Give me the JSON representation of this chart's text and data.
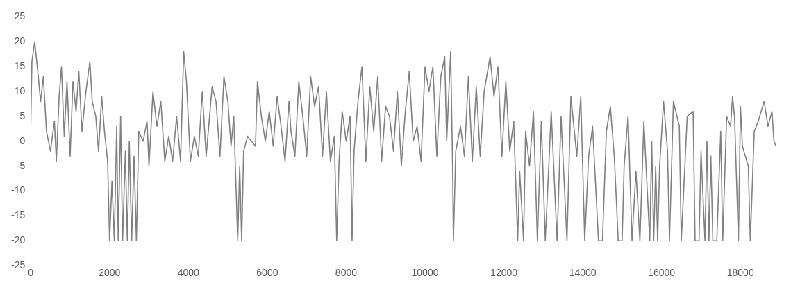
{
  "chart_data": {
    "type": "line",
    "xlim": [
      0,
      19000
    ],
    "xticks": [
      0,
      2000,
      4000,
      6000,
      8000,
      10000,
      12000,
      14000,
      16000,
      18000
    ],
    "ylim": [
      -25,
      25
    ],
    "yticks": [
      -25,
      -20,
      -15,
      -10,
      -5,
      0,
      5,
      10,
      15,
      20,
      25
    ],
    "grid": "y",
    "legend": false,
    "marker": "none",
    "line_style": "solid",
    "series": [
      {
        "color": "#808080",
        "x": [
          0,
          30,
          100,
          180,
          250,
          320,
          400,
          500,
          600,
          650,
          720,
          780,
          850,
          920,
          1000,
          1070,
          1150,
          1220,
          1300,
          1400,
          1500,
          1560,
          1650,
          1720,
          1800,
          1870,
          1950,
          2000,
          2060,
          2120,
          2180,
          2220,
          2280,
          2330,
          2400,
          2450,
          2500,
          2560,
          2620,
          2680,
          2740,
          2850,
          2950,
          3000,
          3100,
          3200,
          3300,
          3400,
          3500,
          3600,
          3700,
          3800,
          3880,
          3950,
          4050,
          4150,
          4250,
          4350,
          4450,
          4600,
          4700,
          4800,
          4900,
          5000,
          5080,
          5150,
          5250,
          5300,
          5350,
          5400,
          5500,
          5700,
          5750,
          5850,
          5950,
          6050,
          6150,
          6250,
          6350,
          6450,
          6550,
          6600,
          6700,
          6800,
          6900,
          7000,
          7100,
          7200,
          7300,
          7400,
          7500,
          7600,
          7700,
          7760,
          7820,
          7900,
          8000,
          8100,
          8150,
          8200,
          8300,
          8400,
          8500,
          8600,
          8700,
          8800,
          8900,
          9000,
          9100,
          9200,
          9300,
          9400,
          9500,
          9600,
          9700,
          9800,
          9900,
          10000,
          10100,
          10200,
          10300,
          10400,
          10500,
          10550,
          10650,
          10700,
          10720,
          10780,
          10900,
          11000,
          11100,
          11200,
          11300,
          11400,
          11500,
          11650,
          11750,
          11850,
          11950,
          12050,
          12150,
          12250,
          12350,
          12400,
          12500,
          12550,
          12650,
          12750,
          12850,
          12950,
          13050,
          13150,
          13200,
          13350,
          13450,
          13600,
          13700,
          13850,
          13950,
          14050,
          14150,
          14250,
          14400,
          14500,
          14600,
          14700,
          14800,
          14900,
          15000,
          15050,
          15150,
          15250,
          15350,
          15450,
          15550,
          15700,
          15750,
          15800,
          15850,
          15900,
          15950,
          16050,
          16150,
          16200,
          16300,
          16450,
          16500,
          16650,
          16800,
          16850,
          16950,
          17000,
          17100,
          17150,
          17200,
          17250,
          17300,
          17400,
          17500,
          17550,
          17650,
          17750,
          17800,
          17850,
          17950,
          18000,
          18050,
          18200,
          18250,
          18350,
          18450,
          18600,
          18700,
          18800,
          18850,
          18900
        ],
        "values": [
          3,
          16,
          20,
          14,
          8,
          13,
          2,
          -2,
          4,
          -4,
          9,
          15,
          1,
          12,
          -3,
          12,
          6,
          14,
          2,
          10,
          16,
          8,
          5,
          -2,
          9,
          2,
          -4,
          -20,
          -8,
          -20,
          3,
          -20,
          5,
          -20,
          -2,
          -20,
          0,
          -20,
          -3,
          -20,
          2,
          0,
          4,
          -5,
          10,
          3,
          8,
          -4,
          1,
          -4,
          5,
          -4,
          18,
          12,
          -4,
          1,
          -3,
          10,
          -3,
          11,
          8,
          -3,
          13,
          8,
          -1,
          5,
          -20,
          -5,
          -20,
          -2,
          1,
          -1,
          12,
          5,
          0,
          6,
          -1,
          9,
          3,
          -4,
          8,
          2,
          -3,
          12,
          5,
          -3,
          13,
          7,
          11,
          -3,
          10,
          -4,
          1,
          -20,
          -4,
          6,
          0,
          5,
          -20,
          -2,
          8,
          15,
          -4,
          11,
          2,
          13,
          -4,
          7,
          5,
          -2,
          10,
          -5,
          6,
          14,
          0,
          3,
          -4,
          15,
          10,
          15,
          -3,
          13,
          17,
          0,
          18,
          -5,
          -20,
          -2,
          3,
          -3,
          13,
          -4,
          11,
          -3,
          10,
          17,
          9,
          15,
          -3,
          12,
          -2,
          4,
          -20,
          -6,
          -20,
          2,
          -5,
          6,
          -20,
          4,
          -20,
          -3,
          6,
          -20,
          5,
          -20,
          9,
          -3,
          9,
          -20,
          -3,
          3,
          -20,
          -20,
          2,
          7,
          -3,
          -20,
          -20,
          -5,
          5,
          -20,
          -6,
          -20,
          4,
          -20,
          0,
          -20,
          -5,
          -20,
          -5,
          8,
          -2,
          -20,
          8,
          3,
          -20,
          5,
          6,
          -20,
          -20,
          -2,
          -20,
          0,
          -20,
          -3,
          -20,
          -20,
          2,
          -20,
          5,
          3,
          9,
          5,
          -20,
          7,
          -1,
          -5,
          -20,
          2,
          4,
          8,
          3,
          6,
          0,
          -1
        ]
      }
    ]
  }
}
